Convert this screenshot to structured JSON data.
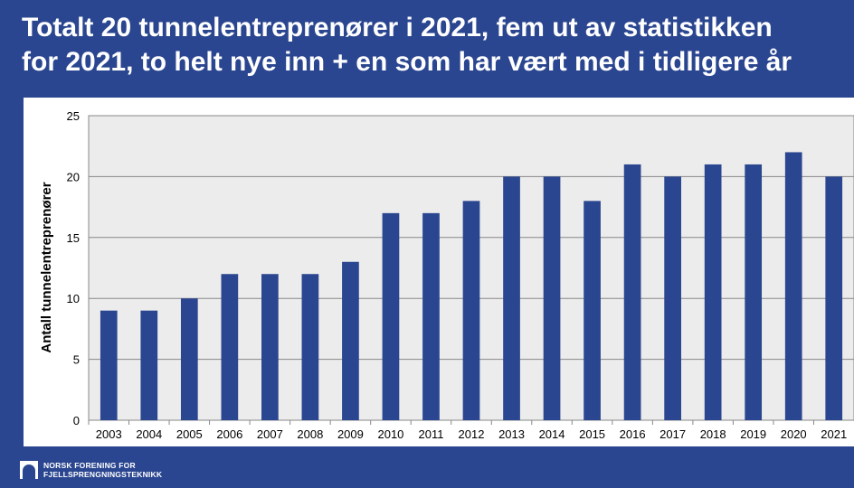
{
  "slide": {
    "title_line1": "Totalt 20 tunnelentreprenører i 2021, fem ut av statistikken",
    "title_line2": "for 2021, to helt nye inn + en som har vært med i tidligere år"
  },
  "logo": {
    "line1": "NORSK FORENING FOR",
    "line2": "FJELLSPRENGNINGSTEKNIKK"
  },
  "colors": {
    "background": "#2b4690",
    "bar": "#2b4690",
    "plot_area": "#ececec",
    "gridline": "#888888"
  },
  "chart_data": {
    "type": "bar",
    "title": "",
    "xlabel": "",
    "ylabel": "Antall tunnelentreprenører",
    "categories": [
      "2003",
      "2004",
      "2005",
      "2006",
      "2007",
      "2008",
      "2009",
      "2010",
      "2011",
      "2012",
      "2013",
      "2014",
      "2015",
      "2016",
      "2017",
      "2018",
      "2019",
      "2020",
      "2021"
    ],
    "values": [
      9,
      9,
      10,
      12,
      12,
      12,
      13,
      17,
      17,
      18,
      20,
      20,
      18,
      21,
      20,
      21,
      21,
      22,
      20
    ],
    "ylim": [
      0,
      25
    ],
    "yticks": [
      0,
      5,
      10,
      15,
      20,
      25
    ],
    "grid": true,
    "legend": "none"
  }
}
